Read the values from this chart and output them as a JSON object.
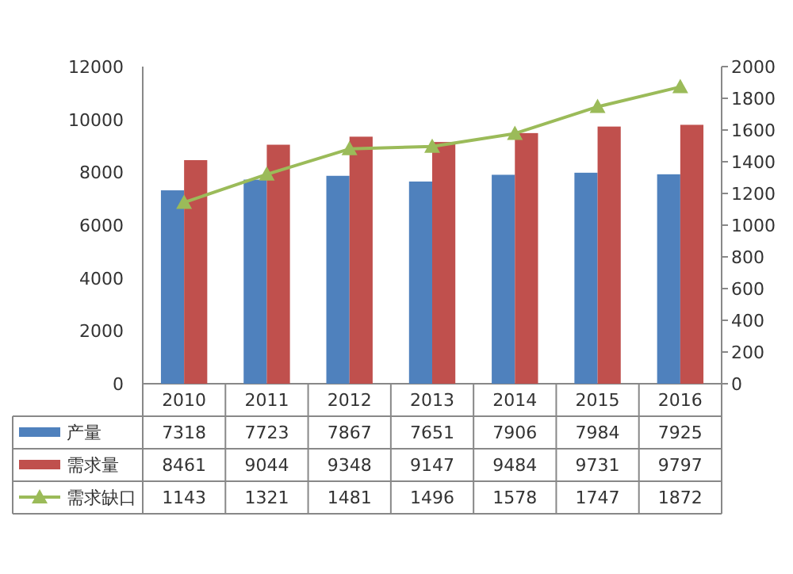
{
  "chart_data": {
    "type": "bar",
    "categories": [
      "2010",
      "2011",
      "2012",
      "2013",
      "2014",
      "2015",
      "2016"
    ],
    "series": [
      {
        "name": "产量",
        "color": "#4f81bd",
        "values": [
          7318,
          7723,
          7867,
          7651,
          7906,
          7984,
          7925
        ]
      },
      {
        "name": "需求量",
        "color": "#c0504d",
        "values": [
          8461,
          9044,
          9348,
          9147,
          9484,
          9731,
          9797
        ]
      },
      {
        "name": "需求缺口",
        "type": "line",
        "axis": "y2",
        "color": "#9bbb59",
        "marker": "triangle",
        "values": [
          1143,
          1321,
          1481,
          1496,
          1578,
          1747,
          1872
        ]
      }
    ],
    "ylim": [
      0,
      12000
    ],
    "yticks": [
      0,
      2000,
      4000,
      6000,
      8000,
      10000,
      12000
    ],
    "y2lim": [
      0,
      2000
    ],
    "y2ticks": [
      0,
      200,
      400,
      600,
      800,
      1000,
      1200,
      1400,
      1600,
      1800,
      2000
    ],
    "data_labels": true,
    "legend": "bottom",
    "grid": false
  }
}
